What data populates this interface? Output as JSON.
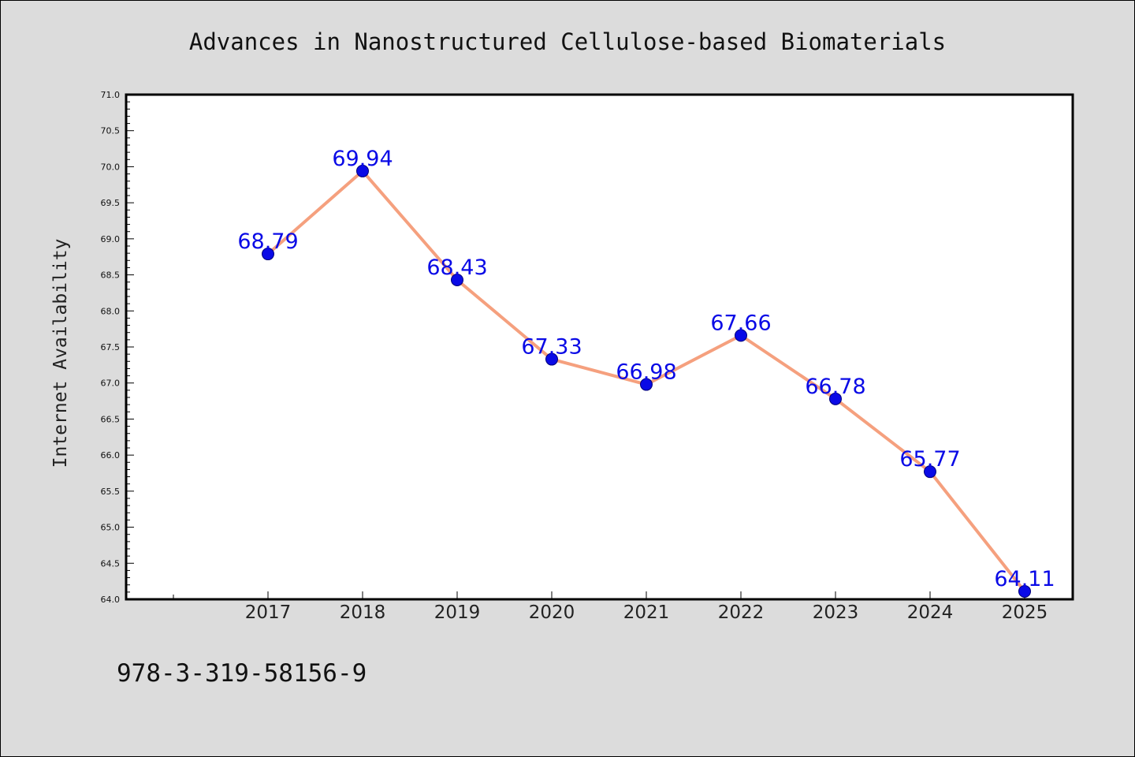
{
  "chart_data": {
    "type": "line",
    "title": "Advances in Nanostructured Cellulose-based Biomaterials",
    "xlabel": "",
    "ylabel": "Internet Availability",
    "categories": [
      "2017",
      "2018",
      "2019",
      "2020",
      "2021",
      "2022",
      "2023",
      "2024",
      "2025"
    ],
    "series": [
      {
        "values": [
          68.79,
          69.94,
          68.43,
          67.33,
          66.98,
          67.66,
          66.78,
          65.77,
          64.11
        ]
      }
    ],
    "data_labels": [
      "68.79",
      "69.94",
      "68.43",
      "67.33",
      "66.98",
      "67.66",
      "66.78",
      "65.77",
      "64.11"
    ],
    "ylim": [
      64.0,
      71.0
    ],
    "yticks": [
      "64.0",
      "64.5",
      "65.0",
      "65.5",
      "66.0",
      "66.5",
      "67.0",
      "67.5",
      "68.0",
      "68.5",
      "69.0",
      "69.5",
      "70.0",
      "70.5",
      "71.0"
    ],
    "grid": false,
    "legend": "none",
    "colors": {
      "line": "#f5a07e",
      "marker": "#0a0ae6",
      "label": "#0a0ae6",
      "background": "#dcdcdc",
      "plot_background": "#ffffff"
    }
  },
  "footer_text": "978-3-319-58156-9"
}
